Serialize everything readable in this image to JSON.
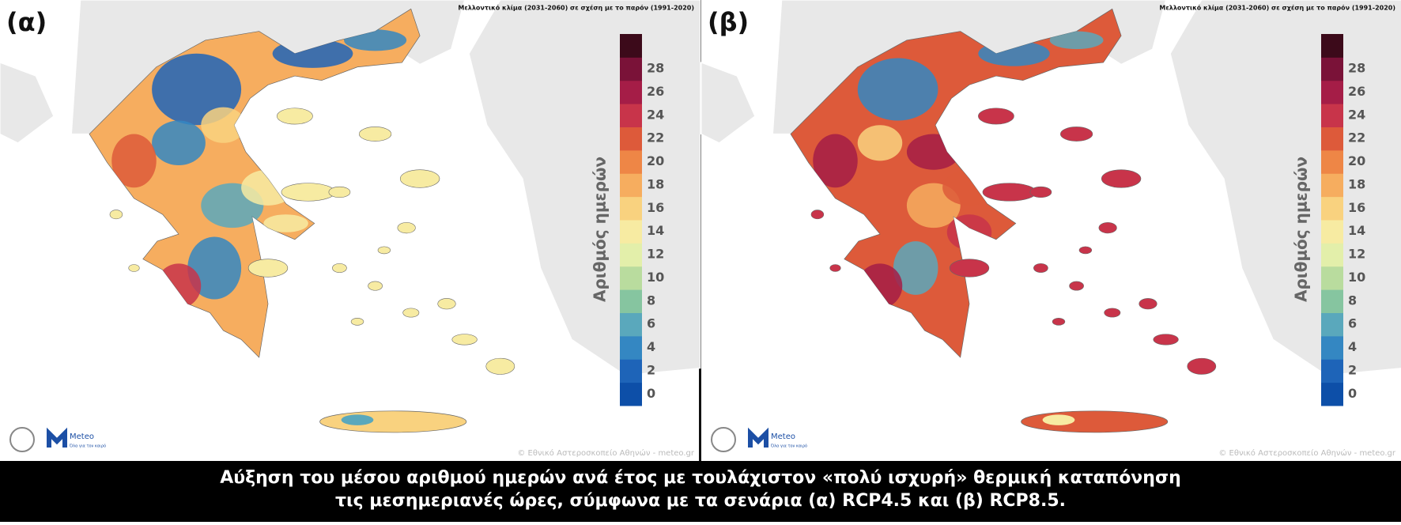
{
  "panels": [
    {
      "label": "(α)",
      "subtitle": "Μελλοντικό κλίμα (2031-2060) σε σχέση με το παρόν (1991-2020)",
      "colorbar_title": "Αριθμός ημερών",
      "ticks": [
        0,
        2,
        4,
        6,
        8,
        10,
        12,
        14,
        16,
        18,
        20,
        22,
        24,
        26,
        28
      ],
      "colors": [
        "#0d4fa8",
        "#1e64b8",
        "#3487c2",
        "#5aa8bc",
        "#86c5a0",
        "#b9dc9e",
        "#e3efaa",
        "#f7eba2",
        "#f9d27f",
        "#f6ad5f",
        "#ee8646",
        "#dd5a3a",
        "#c8344a",
        "#a51d47",
        "#7a1238",
        "#3c0a1a"
      ],
      "logo_name": "Meteo",
      "logo_slogan": "Όλα για τον καιρό",
      "credit": "© Εθνικό Αστεροσκοπείο Αθηνών - meteo.gr",
      "scenario": "RCP4.5"
    },
    {
      "label": "(β)",
      "subtitle": "Μελλοντικό κλίμα (2031-2060) σε σχέση με το παρόν (1991-2020)",
      "colorbar_title": "Αριθμός ημερών",
      "ticks": [
        0,
        2,
        4,
        6,
        8,
        10,
        12,
        14,
        16,
        18,
        20,
        22,
        24,
        26,
        28
      ],
      "colors": [
        "#0d4fa8",
        "#1e64b8",
        "#3487c2",
        "#5aa8bc",
        "#86c5a0",
        "#b9dc9e",
        "#e3efaa",
        "#f7eba2",
        "#f9d27f",
        "#f6ad5f",
        "#ee8646",
        "#dd5a3a",
        "#c8344a",
        "#a51d47",
        "#7a1238",
        "#3c0a1a"
      ],
      "logo_name": "Meteo",
      "logo_slogan": "Όλα για τον καιρό",
      "credit": "© Εθνικό Αστεροσκοπείο Αθηνών - meteo.gr",
      "scenario": "RCP8.5"
    }
  ],
  "caption": [
    "Αύξηση του μέσου αριθμού ημερών ανά έτος με τουλάχιστον «πολύ ισχυρή» θερμική καταπόνηση",
    "τις μεσημεριανές ώρες, σύμφωνα με τα σενάρια (α) RCP4.5 και (β) RCP8.5."
  ]
}
